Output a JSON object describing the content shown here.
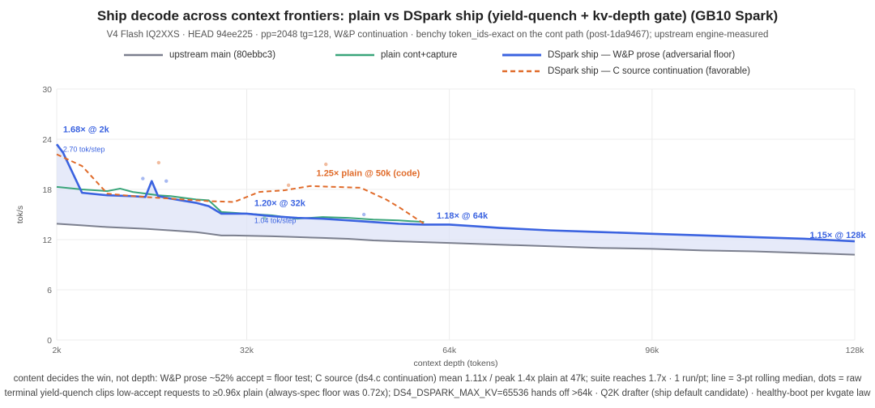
{
  "chart_data": {
    "type": "line",
    "title": "Ship decode across context frontiers: plain vs DSpark ship (yield-quench + kv-depth gate) (GB10 Spark)",
    "subtitle": "V4 Flash IQ2XXS · HEAD 94ee225 · pp=2048 tg=128, W&P continuation · benchy token_ids-exact on the cont path (post-1da9467); upstream engine-measured",
    "xlabel": "context depth (tokens)",
    "ylabel": "tok/s",
    "xlim": [
      2,
      128
    ],
    "ylim": [
      0,
      30
    ],
    "x_ticks": [
      2,
      32,
      64,
      96,
      128
    ],
    "x_tick_labels": [
      "2k",
      "32k",
      "64k",
      "96k",
      "128k"
    ],
    "y_ticks": [
      0,
      6,
      12,
      18,
      24,
      30
    ],
    "y_tick_labels": [
      "0",
      "6",
      "12",
      "18",
      "24",
      "30"
    ],
    "grid": true,
    "legend_position": "top",
    "series": [
      {
        "name": "upstream main (80ebbc3)",
        "color": "#7b7f8e",
        "style": "solid",
        "x": [
          2,
          6,
          10,
          16,
          20,
          24,
          28,
          30,
          36,
          40,
          44,
          48,
          52,
          56,
          60,
          64,
          72,
          80,
          88,
          96,
          104,
          112,
          120,
          128
        ],
        "y": [
          13.9,
          13.7,
          13.5,
          13.3,
          13.1,
          12.9,
          12.5,
          12.5,
          12.4,
          12.3,
          12.2,
          12.1,
          11.9,
          11.8,
          11.7,
          11.6,
          11.4,
          11.2,
          11.0,
          10.9,
          10.7,
          10.6,
          10.4,
          10.2
        ]
      },
      {
        "name": "plain cont+capture",
        "color": "#3aa57a",
        "style": "solid",
        "x": [
          2,
          6,
          8,
          10,
          12,
          14,
          16,
          18,
          20,
          22,
          24,
          26,
          28,
          30,
          34,
          36,
          40,
          44,
          48,
          52,
          56,
          60
        ],
        "y": [
          18.3,
          18.0,
          17.9,
          17.8,
          18.1,
          17.7,
          17.5,
          17.3,
          17.2,
          17.0,
          16.8,
          16.7,
          15.3,
          15.2,
          15.0,
          14.9,
          14.5,
          14.7,
          14.6,
          14.4,
          14.3,
          14.1
        ]
      },
      {
        "name": "DSpark ship — W&P prose (adversarial floor)",
        "color": "#3b63e0",
        "style": "solid",
        "x": [
          2,
          3,
          4,
          6,
          10,
          14,
          16,
          17,
          18,
          20,
          24,
          26,
          28,
          32,
          36,
          40,
          44,
          48,
          52,
          56,
          60,
          64,
          68,
          72,
          80,
          88,
          96,
          104,
          112,
          120,
          128
        ],
        "y": [
          23.4,
          22.4,
          20.8,
          17.6,
          17.3,
          17.2,
          17.1,
          19.0,
          17.2,
          16.9,
          16.4,
          16.0,
          15.1,
          15.1,
          14.8,
          14.6,
          14.5,
          14.3,
          14.1,
          13.9,
          13.8,
          13.8,
          13.6,
          13.4,
          13.1,
          12.9,
          12.7,
          12.5,
          12.3,
          12.1,
          11.8
        ]
      },
      {
        "name": "DSpark ship — C source continuation (favorable)",
        "color": "#e06b2a",
        "style": "dashed",
        "x": [
          2,
          4,
          6,
          10,
          14,
          18,
          22,
          26,
          30,
          34,
          38,
          42,
          46,
          50,
          54,
          56,
          58,
          60
        ],
        "y": [
          22.2,
          21.5,
          20.8,
          17.5,
          17.2,
          17.0,
          16.8,
          16.6,
          16.5,
          17.7,
          17.9,
          18.4,
          18.3,
          18.2,
          16.8,
          15.9,
          14.9,
          13.9
        ]
      }
    ],
    "scatter_dots": [
      {
        "x": 15.6,
        "y": 19.3,
        "color": "#3b63e0"
      },
      {
        "x": 19.3,
        "y": 19.0,
        "color": "#3b63e0"
      },
      {
        "x": 18.1,
        "y": 21.2,
        "color": "#e06b2a"
      },
      {
        "x": 38.6,
        "y": 18.5,
        "color": "#e06b2a"
      },
      {
        "x": 44.5,
        "y": 21.0,
        "color": "#e06b2a"
      },
      {
        "x": 50.5,
        "y": 15.0,
        "color": "#3b63e0"
      },
      {
        "x": 34.8,
        "y": 14.6,
        "color": "#3aa57a"
      }
    ],
    "annotations": [
      {
        "text": "1.68× @ 2k",
        "x": 3.0,
        "y": 24.8,
        "color": "#3b63e0",
        "bold": true,
        "size": 11
      },
      {
        "text": "2.70 tok/step",
        "x": 3.0,
        "y": 22.5,
        "color": "#3b63e0",
        "bold": false,
        "size": 9
      },
      {
        "text": "1.25× plain @ 50k (code)",
        "x": 43.0,
        "y": 19.6,
        "color": "#e06b2a",
        "bold": true,
        "size": 11
      },
      {
        "text": "1.20× @ 32k",
        "x": 33.2,
        "y": 16.0,
        "color": "#3b63e0",
        "bold": true,
        "size": 11
      },
      {
        "text": "1.04 tok/step",
        "x": 33.2,
        "y": 14.0,
        "color": "#3b63e0",
        "bold": false,
        "size": 9
      },
      {
        "text": "1.18× @ 64k",
        "x": 62.0,
        "y": 14.5,
        "color": "#3b63e0",
        "bold": true,
        "size": 11
      },
      {
        "text": "1.15× @ 128k",
        "x": 120.9,
        "y": 12.2,
        "color": "#3b63e0",
        "bold": true,
        "size": 11
      }
    ],
    "shading": {
      "between": [
        "upstream main (80ebbc3)",
        "DSpark ship — W&P prose (adversarial floor)"
      ],
      "color": "#dde3f7"
    }
  },
  "footer": {
    "line1": "content decides the win, not depth: W&P prose ~52% accept = floor test; C source (ds4.c continuation) mean 1.11x / peak 1.4x plain at 47k; suite reaches 1.7x · 1 run/pt; line = 3-pt rolling median, dots = raw",
    "line2": "terminal yield-quench clips low-accept requests to ≥0.96x plain (always-spec floor was 0.72x); DS4_DSPARK_MAX_KV=65536 hands off >64k · Q2K drafter (ship default candidate) · healthy-boot per kvgate law"
  }
}
